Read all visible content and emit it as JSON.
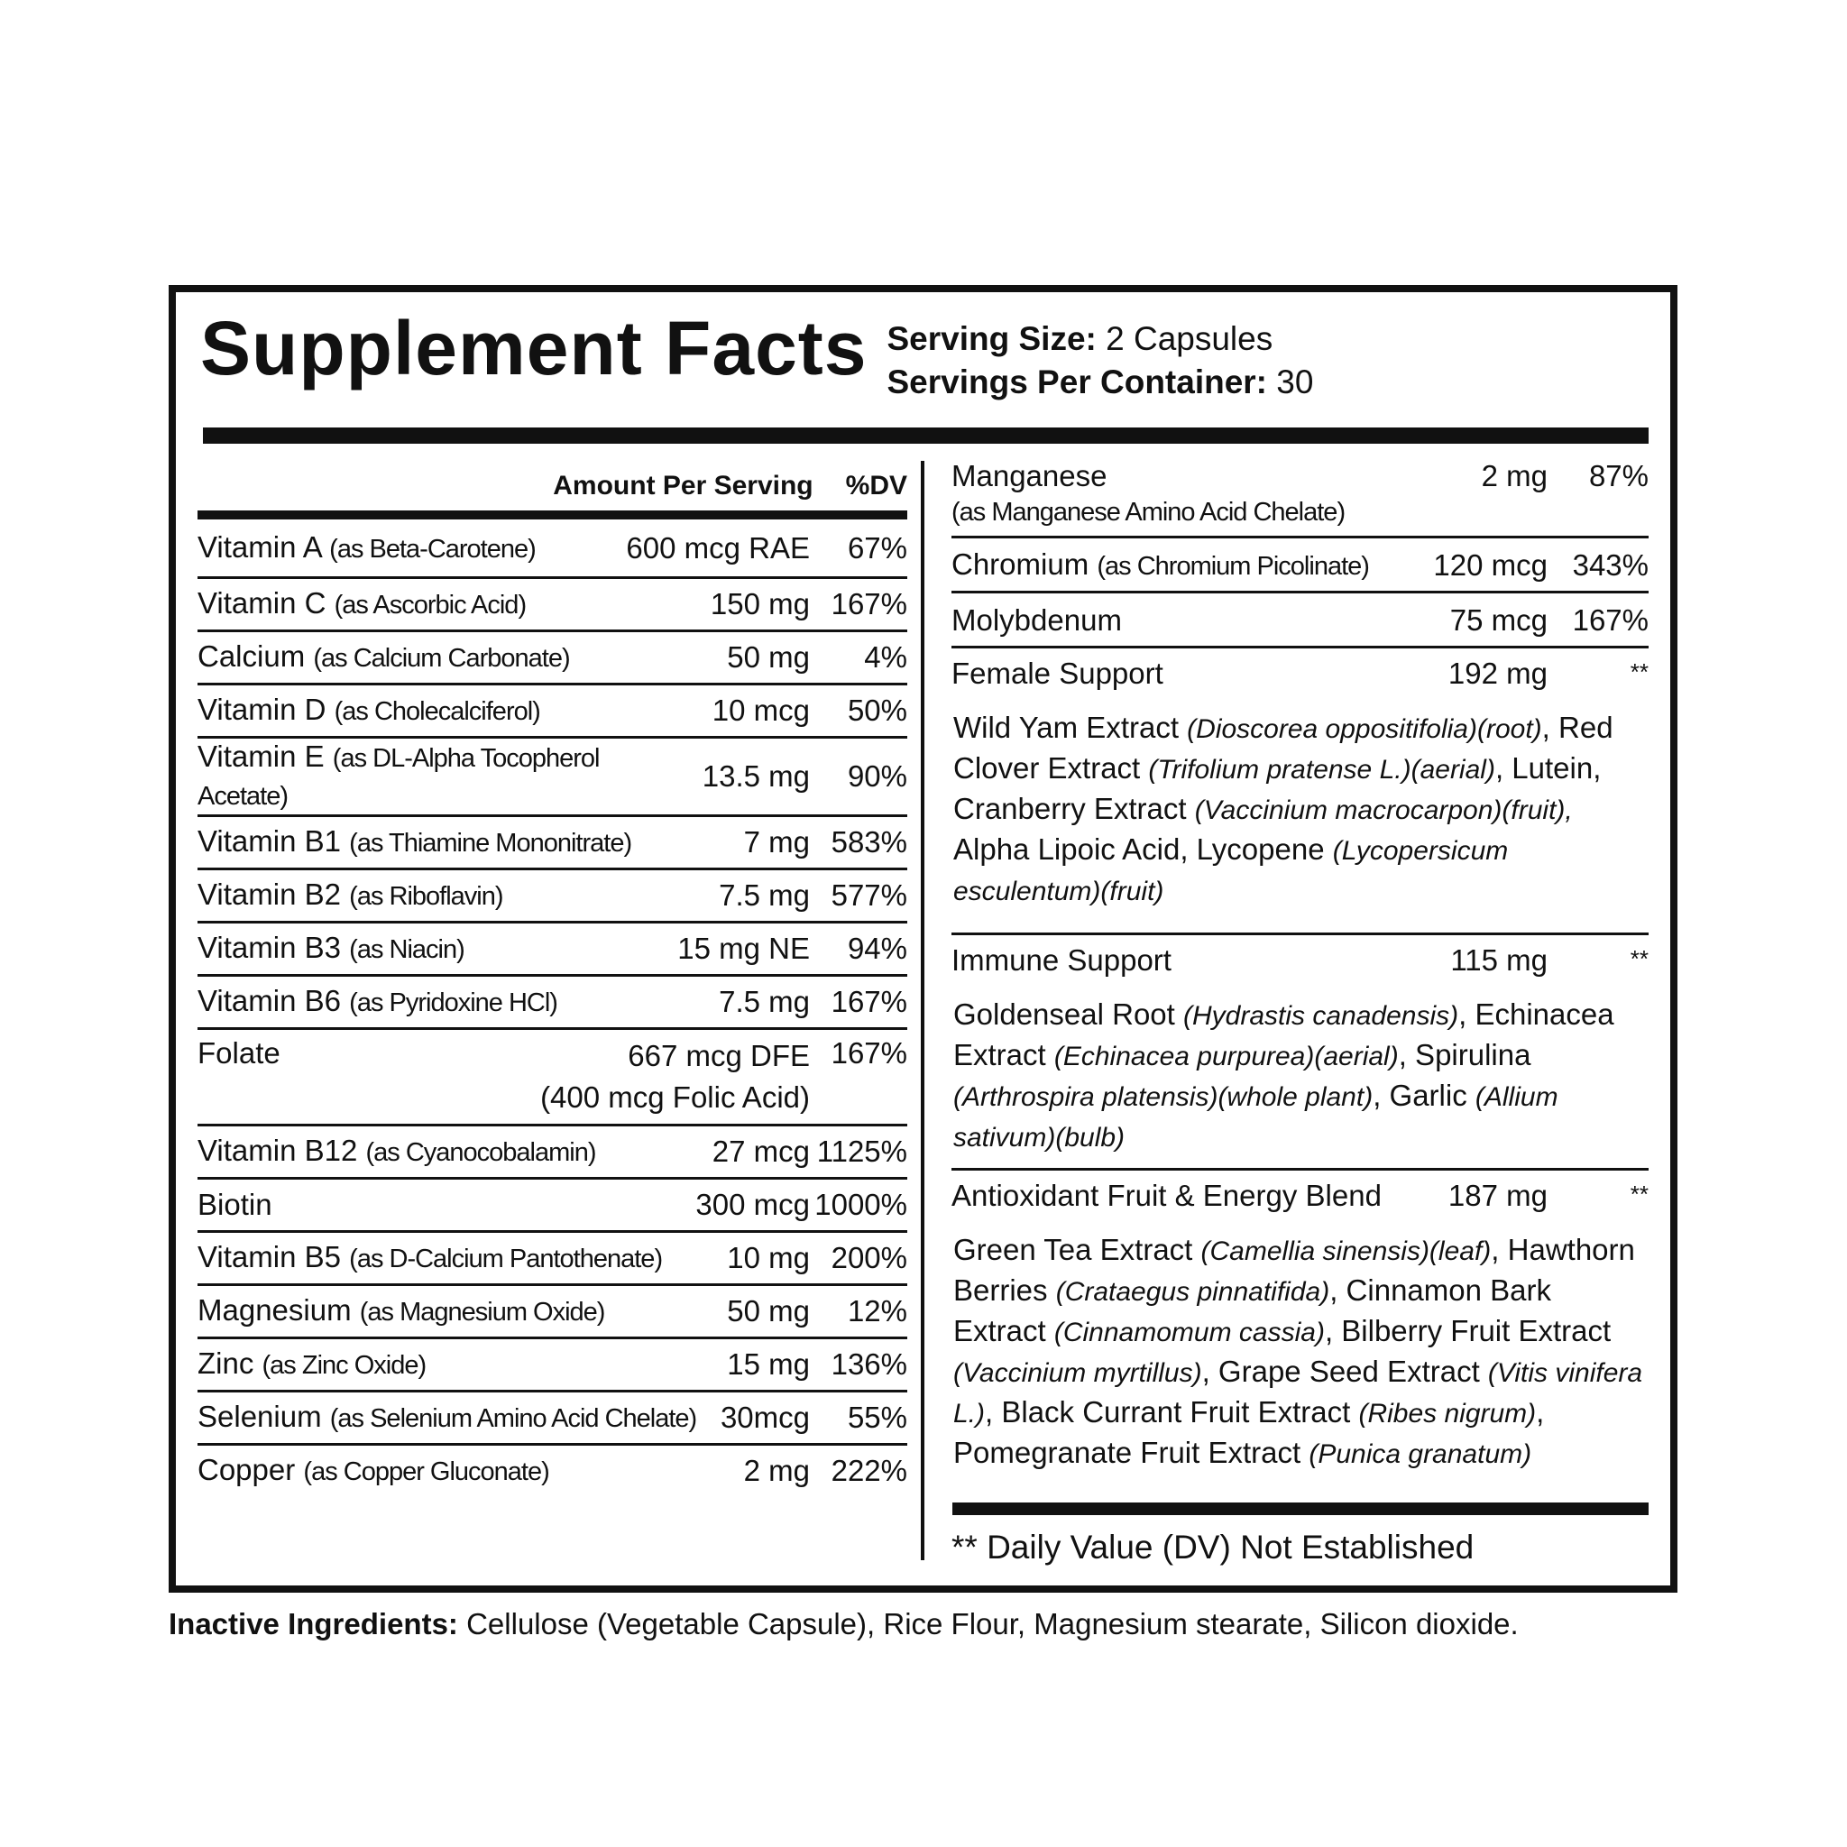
{
  "title": "Supplement Facts",
  "serving": {
    "size_label": "Serving Size:",
    "size_value": " 2 Capsules",
    "per_container_label": "Servings Per Container:",
    "per_container_value": " 30"
  },
  "left_header": {
    "amount": "Amount Per Serving",
    "dv": "%DV"
  },
  "left_rows": [
    {
      "name": "Vitamin A",
      "source": "(as Beta-Carotene)",
      "amount": "600 mcg RAE",
      "dv": "67%"
    },
    {
      "name": "Vitamin C",
      "source": "(as Ascorbic Acid)",
      "amount": "150 mg",
      "dv": "167%"
    },
    {
      "name": "Calcium",
      "source": "(as Calcium Carbonate)",
      "amount": "50 mg",
      "dv": "4%"
    },
    {
      "name": "Vitamin D",
      "source": "(as Cholecalciferol)",
      "amount": "10 mcg",
      "dv": "50%"
    },
    {
      "name": "Vitamin E",
      "source": "(as DL-Alpha Tocopherol Acetate)",
      "amount": "13.5 mg",
      "dv": "90%"
    },
    {
      "name": "Vitamin B1",
      "source": "(as Thiamine Mononitrate)",
      "amount": "7 mg",
      "dv": "583%"
    },
    {
      "name": "Vitamin B2",
      "source": "(as Riboflavin)",
      "amount": "7.5 mg",
      "dv": "577%"
    },
    {
      "name": "Vitamin B3",
      "source": "(as Niacin)",
      "amount": "15 mg NE",
      "dv": "94%"
    },
    {
      "name": "Vitamin B6",
      "source": "(as Pyridoxine HCl)",
      "amount": "7.5 mg",
      "dv": "167%"
    },
    {
      "name": "Folate",
      "source": "",
      "amount": "667 mcg DFE",
      "amount2": "(400 mcg Folic Acid)",
      "dv": "167%"
    },
    {
      "name": "Vitamin B12",
      "source": "(as Cyanocobalamin)",
      "amount": "27 mcg",
      "dv": "1125%"
    },
    {
      "name": "Biotin",
      "source": "",
      "amount": "300 mcg",
      "dv": "1000%"
    },
    {
      "name": "Vitamin B5",
      "source": "(as D-Calcium Pantothenate)",
      "amount": "10 mg",
      "dv": "200%"
    },
    {
      "name": "Magnesium",
      "source": "(as Magnesium Oxide)",
      "amount": "50 mg",
      "dv": "12%"
    },
    {
      "name": "Zinc",
      "source": "(as Zinc Oxide)",
      "amount": "15 mg",
      "dv": "136%"
    },
    {
      "name": "Selenium",
      "source": "(as Selenium Amino Acid Chelate)",
      "amount": "30mcg",
      "dv": "55%"
    },
    {
      "name": "Copper",
      "source": "(as Copper Gluconate)",
      "amount": "2 mg",
      "dv": "222%"
    }
  ],
  "right_rows": [
    {
      "name": "Manganese",
      "source_line": "(as Manganese Amino Acid Chelate)",
      "amount": "2 mg",
      "dv": "87%"
    },
    {
      "name": "Chromium",
      "source": "(as Chromium Picolinate)",
      "amount": "120 mcg",
      "dv": "343%"
    },
    {
      "name": "Molybdenum",
      "amount": "75 mcg",
      "dv": "167%"
    }
  ],
  "blends": [
    {
      "name": "Female Support",
      "amount": "192 mg",
      "dv": "**",
      "ingredients": [
        {
          "t": "Wild Yam Extract "
        },
        {
          "t": "(Dioscorea oppositifolia)(root)",
          "i": true
        },
        {
          "t": ", Red Clover Extract "
        },
        {
          "t": "(Trifolium pratense L.)(aerial)",
          "i": true
        },
        {
          "t": ", Lutein, Cranberry Extract "
        },
        {
          "t": "(Vaccinium macrocarpon)(fruit),",
          "i": true
        },
        {
          "t": " Alpha Lipoic Acid, Lycopene "
        },
        {
          "t": "(Lycopersicum esculentum)(fruit)",
          "i": true
        }
      ]
    },
    {
      "name": "Immune Support",
      "amount": "115 mg",
      "dv": "**",
      "ingredients": [
        {
          "t": "Goldenseal Root "
        },
        {
          "t": "(Hydrastis canadensis)",
          "i": true
        },
        {
          "t": ", Echinacea Extract "
        },
        {
          "t": "(Echinacea purpurea)(aerial)",
          "i": true
        },
        {
          "t": ", Spirulina "
        },
        {
          "t": "(Arthrospira platensis)(whole plant)",
          "i": true
        },
        {
          "t": ", Garlic "
        },
        {
          "t": "(Allium sativum)(bulb)",
          "i": true
        }
      ]
    },
    {
      "name": "Antioxidant Fruit & Energy Blend",
      "amount": "187 mg",
      "dv": "**",
      "ingredients": [
        {
          "t": "Green Tea Extract "
        },
        {
          "t": "(Camellia sinensis)(leaf)",
          "i": true
        },
        {
          "t": ", Hawthorn Berries "
        },
        {
          "t": "(Crataegus pinnatifida)",
          "i": true
        },
        {
          "t": ", Cinnamon Bark Extract "
        },
        {
          "t": "(Cinnamomum cassia)",
          "i": true
        },
        {
          "t": ", Bilberry Fruit Extract "
        },
        {
          "t": "(Vaccinium myrtillus)",
          "i": true
        },
        {
          "t": ", Grape Seed Extract "
        },
        {
          "t": "(Vitis vinifera L.)",
          "i": true
        },
        {
          "t": ", Black Currant Fruit Extract "
        },
        {
          "t": "(Ribes nigrum)",
          "i": true
        },
        {
          "t": ", Pomegranate Fruit Extract "
        },
        {
          "t": "(Punica granatum)",
          "i": true
        }
      ]
    }
  ],
  "footnote": "** Daily Value (DV) Not Established",
  "inactive": {
    "label": "Inactive Ingredients:",
    "text": " Cellulose (Vegetable Capsule), Rice Flour, Magnesium stearate, Silicon dioxide."
  }
}
